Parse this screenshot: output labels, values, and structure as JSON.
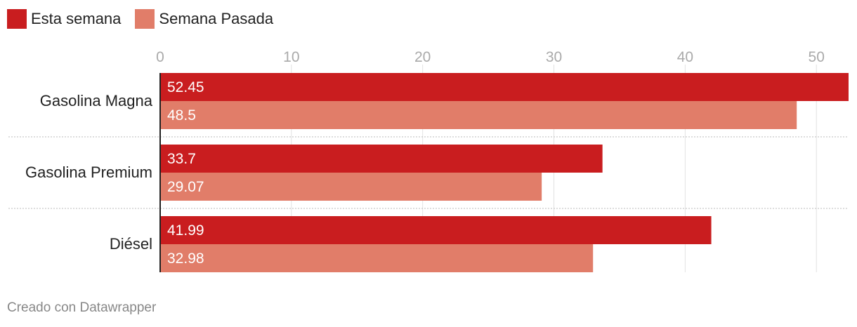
{
  "legend": [
    {
      "label": "Esta semana",
      "color": "#c91d1f"
    },
    {
      "label": "Semana Pasada",
      "color": "#e17d69"
    }
  ],
  "footer": "Creado con Datawrapper",
  "chart_data": {
    "type": "bar",
    "orientation": "horizontal",
    "categories": [
      "Gasolina Magna",
      "Gasolina Premium",
      "Diésel"
    ],
    "series": [
      {
        "name": "Esta semana",
        "color": "#c91d1f",
        "values": [
          52.45,
          33.7,
          41.99
        ],
        "labels": [
          "52.45",
          "33.7",
          "41.99"
        ]
      },
      {
        "name": "Semana Pasada",
        "color": "#e17d69",
        "values": [
          48.5,
          29.07,
          32.98
        ],
        "labels": [
          "48.5",
          "29.07",
          "32.98"
        ]
      }
    ],
    "xlim": [
      0,
      52.45
    ],
    "xticks": [
      0,
      10,
      20,
      30,
      40,
      50
    ],
    "xtick_labels": [
      "0",
      "10",
      "20",
      "30",
      "40",
      "50"
    ],
    "grid": true,
    "legend_position": "top-left"
  }
}
